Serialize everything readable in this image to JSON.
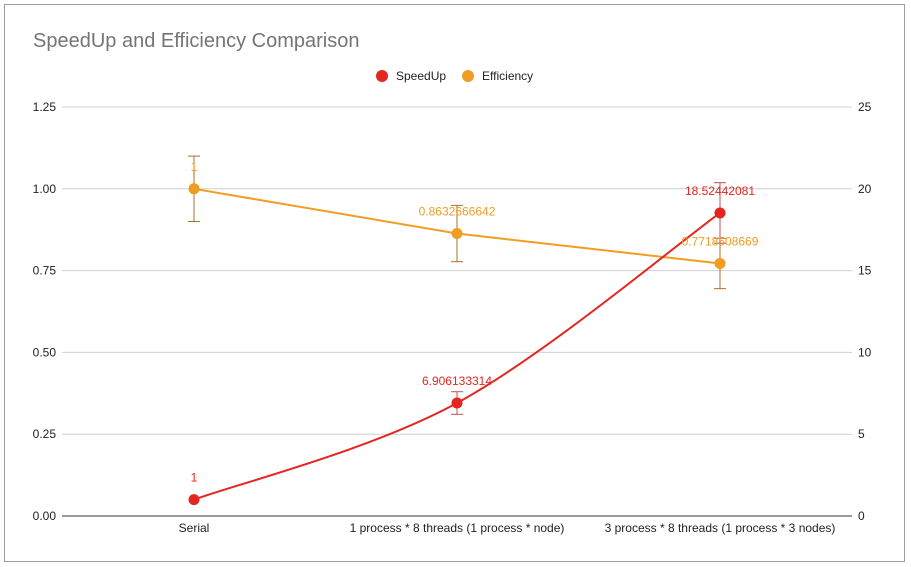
{
  "chart_data": {
    "type": "line",
    "title": "SpeedUp and Efficiency Comparison",
    "categories": [
      "Serial",
      "1 process * 8 threads (1 process * node)",
      "3 process * 8 threads (1 process * 3 nodes)"
    ],
    "left_axis": {
      "ylim": [
        0,
        1.25
      ],
      "ticks": [
        "0.00",
        "0.25",
        "0.50",
        "0.75",
        "1.00",
        "1.25"
      ],
      "tick_values": [
        0,
        0.25,
        0.5,
        0.75,
        1.0,
        1.25
      ]
    },
    "right_axis": {
      "ylim": [
        0,
        25
      ],
      "ticks": [
        "0",
        "5",
        "10",
        "15",
        "20",
        "25"
      ],
      "tick_values": [
        0,
        5,
        10,
        15,
        20,
        25
      ]
    },
    "grid": true,
    "legend_position": "top",
    "series": [
      {
        "name": "SpeedUp",
        "axis": "right",
        "color": "#e52620",
        "smooth": true,
        "values": [
          1,
          6.906133314,
          18.52442081
        ],
        "labels": [
          "1",
          "6.906133314",
          "18.52442081"
        ],
        "error": [
          null,
          0.69,
          1.85
        ]
      },
      {
        "name": "Efficiency",
        "axis": "left",
        "color": "#f19d23",
        "smooth": false,
        "values": [
          1,
          0.8632666642,
          0.7718508669
        ],
        "labels": [
          "1",
          "0.8632666642",
          "0.7718508669"
        ],
        "error": [
          0.1,
          0.086,
          0.077
        ]
      }
    ]
  }
}
